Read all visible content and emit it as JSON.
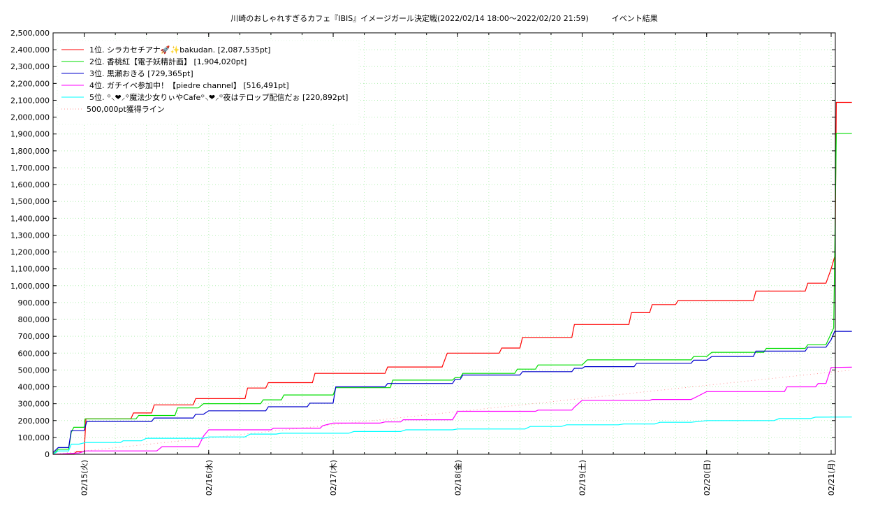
{
  "chart_data": {
    "type": "line",
    "title": "川崎のおしゃれすぎるカフェ『IBIS』イメージガール決定戦(2022/02/14 18:00～2022/02/20 21:59)　　　イベント結果",
    "xlabel": "",
    "ylabel": "",
    "x_range": [
      "2022-02-14 18:00",
      "2022-02-20 21:59"
    ],
    "ylim": [
      0,
      2500000
    ],
    "y_ticks": [
      0,
      100000,
      200000,
      300000,
      400000,
      500000,
      600000,
      700000,
      800000,
      900000,
      1000000,
      1100000,
      1200000,
      1300000,
      1400000,
      1500000,
      1600000,
      1700000,
      1800000,
      1900000,
      2000000,
      2100000,
      2200000,
      2300000,
      2400000,
      2500000
    ],
    "y_tick_labels": [
      "0",
      "100,000",
      "200,000",
      "300,000",
      "400,000",
      "500,000",
      "600,000",
      "700,000",
      "800,000",
      "900,000",
      "1,000,000",
      "1,100,000",
      "1,200,000",
      "1,300,000",
      "1,400,000",
      "1,500,000",
      "1,600,000",
      "1,700,000",
      "1,800,000",
      "1,900,000",
      "2,000,000",
      "2,100,000",
      "2,200,000",
      "2,300,000",
      "2,400,000",
      "2,500,000"
    ],
    "x_ticks": [
      {
        "label": "02/15(火)",
        "at": "2022-02-15 00:00"
      },
      {
        "label": "02/16(水)",
        "at": "2022-02-16 00:00"
      },
      {
        "label": "02/17(木)",
        "at": "2022-02-17 00:00"
      },
      {
        "label": "02/18(金)",
        "at": "2022-02-18 00:00"
      },
      {
        "label": "02/19(土)",
        "at": "2022-02-19 00:00"
      },
      {
        "label": "02/20(日)",
        "at": "2022-02-20 00:00"
      },
      {
        "label": "02/21(月)",
        "at": "2022-02-21 00:00"
      }
    ],
    "grid": true,
    "legend_position": "top-left",
    "series": [
      {
        "name": "1位. シラカセチアナ🚀✨bakudan. [2,087,535pt]",
        "color": "#ff0000",
        "points": [
          [
            "2022-02-14 18:00",
            0
          ],
          [
            "2022-02-14 22:00",
            0
          ],
          [
            "2022-02-14 22:30",
            15000
          ],
          [
            "2022-02-15 00:00",
            15000
          ],
          [
            "2022-02-15 00:20",
            210000
          ],
          [
            "2022-02-15 09:00",
            210000
          ],
          [
            "2022-02-15 09:30",
            245000
          ],
          [
            "2022-02-15 13:00",
            245000
          ],
          [
            "2022-02-15 13:30",
            293000
          ],
          [
            "2022-02-15 21:00",
            293000
          ],
          [
            "2022-02-15 21:30",
            330000
          ],
          [
            "2022-02-16 07:00",
            330000
          ],
          [
            "2022-02-16 07:30",
            393000
          ],
          [
            "2022-02-16 11:00",
            393000
          ],
          [
            "2022-02-16 11:30",
            425000
          ],
          [
            "2022-02-16 20:00",
            425000
          ],
          [
            "2022-02-16 20:30",
            480000
          ],
          [
            "2022-02-17 10:00",
            480000
          ],
          [
            "2022-02-17 10:30",
            518000
          ],
          [
            "2022-02-17 21:00",
            518000
          ],
          [
            "2022-02-17 22:00",
            600000
          ],
          [
            "2022-02-18 08:00",
            600000
          ],
          [
            "2022-02-18 08:30",
            630000
          ],
          [
            "2022-02-18 12:00",
            630000
          ],
          [
            "2022-02-18 12:30",
            693000
          ],
          [
            "2022-02-18 22:00",
            693000
          ],
          [
            "2022-02-18 22:30",
            770000
          ],
          [
            "2022-02-19 09:00",
            770000
          ],
          [
            "2022-02-19 09:30",
            840000
          ],
          [
            "2022-02-19 13:00",
            840000
          ],
          [
            "2022-02-19 13:30",
            888000
          ],
          [
            "2022-02-19 18:00",
            888000
          ],
          [
            "2022-02-19 18:30",
            912000
          ],
          [
            "2022-02-20 09:00",
            912000
          ],
          [
            "2022-02-20 09:30",
            968000
          ],
          [
            "2022-02-20 19:00",
            968000
          ],
          [
            "2022-02-20 19:30",
            1015000
          ],
          [
            "2022-02-20 23:00",
            1015000
          ],
          [
            "2022-02-21 00:00",
            1100000
          ],
          [
            "2022-02-21 00:45",
            1180000
          ],
          [
            "2022-02-21 01:00",
            2087535
          ],
          [
            "2022-02-21 04:00",
            2087535
          ]
        ]
      },
      {
        "name": "2位. 香桃紅【電子妖精計画】 [1,904,020pt]",
        "color": "#00dd00",
        "points": [
          [
            "2022-02-14 18:00",
            0
          ],
          [
            "2022-02-14 19:00",
            30000
          ],
          [
            "2022-02-14 21:00",
            30000
          ],
          [
            "2022-02-14 21:30",
            130000
          ],
          [
            "2022-02-14 22:00",
            160000
          ],
          [
            "2022-02-14 23:59",
            160000
          ],
          [
            "2022-02-15 00:10",
            210000
          ],
          [
            "2022-02-15 10:00",
            210000
          ],
          [
            "2022-02-15 10:30",
            230000
          ],
          [
            "2022-02-15 17:30",
            230000
          ],
          [
            "2022-02-15 18:00",
            275000
          ],
          [
            "2022-02-15 22:00",
            275000
          ],
          [
            "2022-02-15 23:00",
            300000
          ],
          [
            "2022-02-16 10:00",
            300000
          ],
          [
            "2022-02-16 10:30",
            323000
          ],
          [
            "2022-02-16 14:00",
            323000
          ],
          [
            "2022-02-16 14:30",
            352000
          ],
          [
            "2022-02-17 00:00",
            352000
          ],
          [
            "2022-02-17 00:30",
            395000
          ],
          [
            "2022-02-17 11:00",
            395000
          ],
          [
            "2022-02-17 11:30",
            440000
          ],
          [
            "2022-02-17 23:00",
            440000
          ],
          [
            "2022-02-17 23:30",
            455000
          ],
          [
            "2022-02-18 00:30",
            455000
          ],
          [
            "2022-02-18 01:00",
            480000
          ],
          [
            "2022-02-18 11:00",
            480000
          ],
          [
            "2022-02-18 11:30",
            505000
          ],
          [
            "2022-02-18 15:00",
            505000
          ],
          [
            "2022-02-18 15:30",
            530000
          ],
          [
            "2022-02-19 00:00",
            530000
          ],
          [
            "2022-02-19 01:00",
            560000
          ],
          [
            "2022-02-19 21:00",
            560000
          ],
          [
            "2022-02-19 21:30",
            580000
          ],
          [
            "2022-02-20 00:00",
            580000
          ],
          [
            "2022-02-20 01:00",
            605000
          ],
          [
            "2022-02-20 11:00",
            605000
          ],
          [
            "2022-02-20 11:30",
            628000
          ],
          [
            "2022-02-20 19:00",
            628000
          ],
          [
            "2022-02-20 19:30",
            650000
          ],
          [
            "2022-02-20 23:00",
            650000
          ],
          [
            "2022-02-21 00:30",
            750000
          ],
          [
            "2022-02-21 01:00",
            1904020
          ],
          [
            "2022-02-21 04:00",
            1904020
          ]
        ]
      },
      {
        "name": "3位. 黒瀬おきる [729,365pt]",
        "color": "#0000cc",
        "points": [
          [
            "2022-02-14 18:00",
            10000
          ],
          [
            "2022-02-14 19:00",
            40000
          ],
          [
            "2022-02-14 21:00",
            40000
          ],
          [
            "2022-02-14 21:30",
            140000
          ],
          [
            "2022-02-14 23:59",
            140000
          ],
          [
            "2022-02-15 00:30",
            195000
          ],
          [
            "2022-02-15 13:00",
            195000
          ],
          [
            "2022-02-15 13:30",
            215000
          ],
          [
            "2022-02-15 21:00",
            215000
          ],
          [
            "2022-02-15 21:30",
            238000
          ],
          [
            "2022-02-15 23:00",
            238000
          ],
          [
            "2022-02-16 00:00",
            258000
          ],
          [
            "2022-02-16 11:00",
            258000
          ],
          [
            "2022-02-16 11:30",
            282000
          ],
          [
            "2022-02-16 19:00",
            282000
          ],
          [
            "2022-02-16 19:30",
            303000
          ],
          [
            "2022-02-16 23:59",
            303000
          ],
          [
            "2022-02-17 00:30",
            400000
          ],
          [
            "2022-02-17 10:00",
            400000
          ],
          [
            "2022-02-17 10:30",
            420000
          ],
          [
            "2022-02-17 23:00",
            420000
          ],
          [
            "2022-02-17 23:30",
            445000
          ],
          [
            "2022-02-18 00:30",
            445000
          ],
          [
            "2022-02-18 01:00",
            470000
          ],
          [
            "2022-02-18 12:00",
            470000
          ],
          [
            "2022-02-18 12:30",
            490000
          ],
          [
            "2022-02-18 22:00",
            490000
          ],
          [
            "2022-02-18 22:30",
            510000
          ],
          [
            "2022-02-19 00:00",
            510000
          ],
          [
            "2022-02-19 00:30",
            520000
          ],
          [
            "2022-02-19 10:00",
            520000
          ],
          [
            "2022-02-19 10:30",
            540000
          ],
          [
            "2022-02-19 21:00",
            540000
          ],
          [
            "2022-02-19 21:30",
            558000
          ],
          [
            "2022-02-20 00:00",
            558000
          ],
          [
            "2022-02-20 01:00",
            580000
          ],
          [
            "2022-02-20 09:00",
            580000
          ],
          [
            "2022-02-20 09:30",
            612000
          ],
          [
            "2022-02-20 19:00",
            612000
          ],
          [
            "2022-02-20 19:30",
            635000
          ],
          [
            "2022-02-20 23:00",
            635000
          ],
          [
            "2022-02-21 00:00",
            680000
          ],
          [
            "2022-02-21 00:40",
            729365
          ],
          [
            "2022-02-21 04:00",
            729365
          ]
        ]
      },
      {
        "name": "4位. ガチイベ参加中！【piedre channel】 [516,491pt]",
        "color": "#ff00ff",
        "points": [
          [
            "2022-02-14 18:00",
            0
          ],
          [
            "2022-02-14 20:00",
            3000
          ],
          [
            "2022-02-14 23:00",
            8000
          ],
          [
            "2022-02-15 00:20",
            20000
          ],
          [
            "2022-02-15 14:00",
            20000
          ],
          [
            "2022-02-15 15:00",
            45000
          ],
          [
            "2022-02-15 22:00",
            45000
          ],
          [
            "2022-02-15 23:00",
            108000
          ],
          [
            "2022-02-16 00:00",
            145000
          ],
          [
            "2022-02-16 12:00",
            145000
          ],
          [
            "2022-02-16 12:30",
            155000
          ],
          [
            "2022-02-16 21:30",
            155000
          ],
          [
            "2022-02-16 22:00",
            170000
          ],
          [
            "2022-02-17 00:00",
            185000
          ],
          [
            "2022-02-17 09:00",
            185000
          ],
          [
            "2022-02-17 10:00",
            192000
          ],
          [
            "2022-02-17 13:00",
            192000
          ],
          [
            "2022-02-17 13:30",
            205000
          ],
          [
            "2022-02-17 23:00",
            205000
          ],
          [
            "2022-02-18 00:00",
            255000
          ],
          [
            "2022-02-18 15:00",
            255000
          ],
          [
            "2022-02-18 15:30",
            262000
          ],
          [
            "2022-02-18 22:00",
            262000
          ],
          [
            "2022-02-18 22:30",
            280000
          ],
          [
            "2022-02-19 00:00",
            320000
          ],
          [
            "2022-02-19 13:00",
            320000
          ],
          [
            "2022-02-19 13:30",
            325000
          ],
          [
            "2022-02-19 21:00",
            325000
          ],
          [
            "2022-02-19 22:00",
            340000
          ],
          [
            "2022-02-20 00:00",
            372000
          ],
          [
            "2022-02-20 15:00",
            372000
          ],
          [
            "2022-02-20 15:30",
            400000
          ],
          [
            "2022-02-20 21:00",
            400000
          ],
          [
            "2022-02-20 21:30",
            420000
          ],
          [
            "2022-02-20 23:00",
            420000
          ],
          [
            "2022-02-21 00:00",
            515000
          ],
          [
            "2022-02-21 04:00",
            516491
          ]
        ]
      },
      {
        "name": "5位. ꙳⸜❤︎⸝꙳魔法少女りぃやCafe꙳⸜❤︎⸝꙳夜はテロップ配信だぉ [220,892pt]",
        "color": "#00ffff",
        "points": [
          [
            "2022-02-14 18:00",
            0
          ],
          [
            "2022-02-14 19:00",
            20000
          ],
          [
            "2022-02-14 21:00",
            20000
          ],
          [
            "2022-02-14 21:30",
            60000
          ],
          [
            "2022-02-14 23:00",
            60000
          ],
          [
            "2022-02-15 00:20",
            70000
          ],
          [
            "2022-02-15 07:00",
            70000
          ],
          [
            "2022-02-15 07:30",
            80000
          ],
          [
            "2022-02-15 11:00",
            80000
          ],
          [
            "2022-02-15 12:00",
            95000
          ],
          [
            "2022-02-15 23:00",
            95000
          ],
          [
            "2022-02-16 00:00",
            103000
          ],
          [
            "2022-02-16 07:00",
            103000
          ],
          [
            "2022-02-16 08:00",
            120000
          ],
          [
            "2022-02-16 13:00",
            120000
          ],
          [
            "2022-02-16 14:00",
            125000
          ],
          [
            "2022-02-17 03:00",
            125000
          ],
          [
            "2022-02-17 04:00",
            135000
          ],
          [
            "2022-02-17 13:00",
            135000
          ],
          [
            "2022-02-17 14:00",
            145000
          ],
          [
            "2022-02-17 23:00",
            145000
          ],
          [
            "2022-02-18 00:00",
            150000
          ],
          [
            "2022-02-18 13:00",
            150000
          ],
          [
            "2022-02-18 14:00",
            165000
          ],
          [
            "2022-02-18 20:00",
            165000
          ],
          [
            "2022-02-18 21:00",
            175000
          ],
          [
            "2022-02-19 07:00",
            175000
          ],
          [
            "2022-02-19 08:00",
            180000
          ],
          [
            "2022-02-19 14:00",
            180000
          ],
          [
            "2022-02-19 15:00",
            190000
          ],
          [
            "2022-02-19 21:00",
            190000
          ],
          [
            "2022-02-20 00:00",
            200000
          ],
          [
            "2022-02-20 13:00",
            200000
          ],
          [
            "2022-02-20 14:00",
            212000
          ],
          [
            "2022-02-20 20:00",
            212000
          ],
          [
            "2022-02-20 21:00",
            220000
          ],
          [
            "2022-02-21 04:00",
            220892
          ]
        ]
      },
      {
        "name": "500,000pt獲得ライン",
        "color": "#ff9999",
        "dashed": true,
        "points": [
          [
            "2022-02-14 18:00",
            0
          ],
          [
            "2022-02-21 04:00",
            500000
          ]
        ]
      }
    ]
  }
}
